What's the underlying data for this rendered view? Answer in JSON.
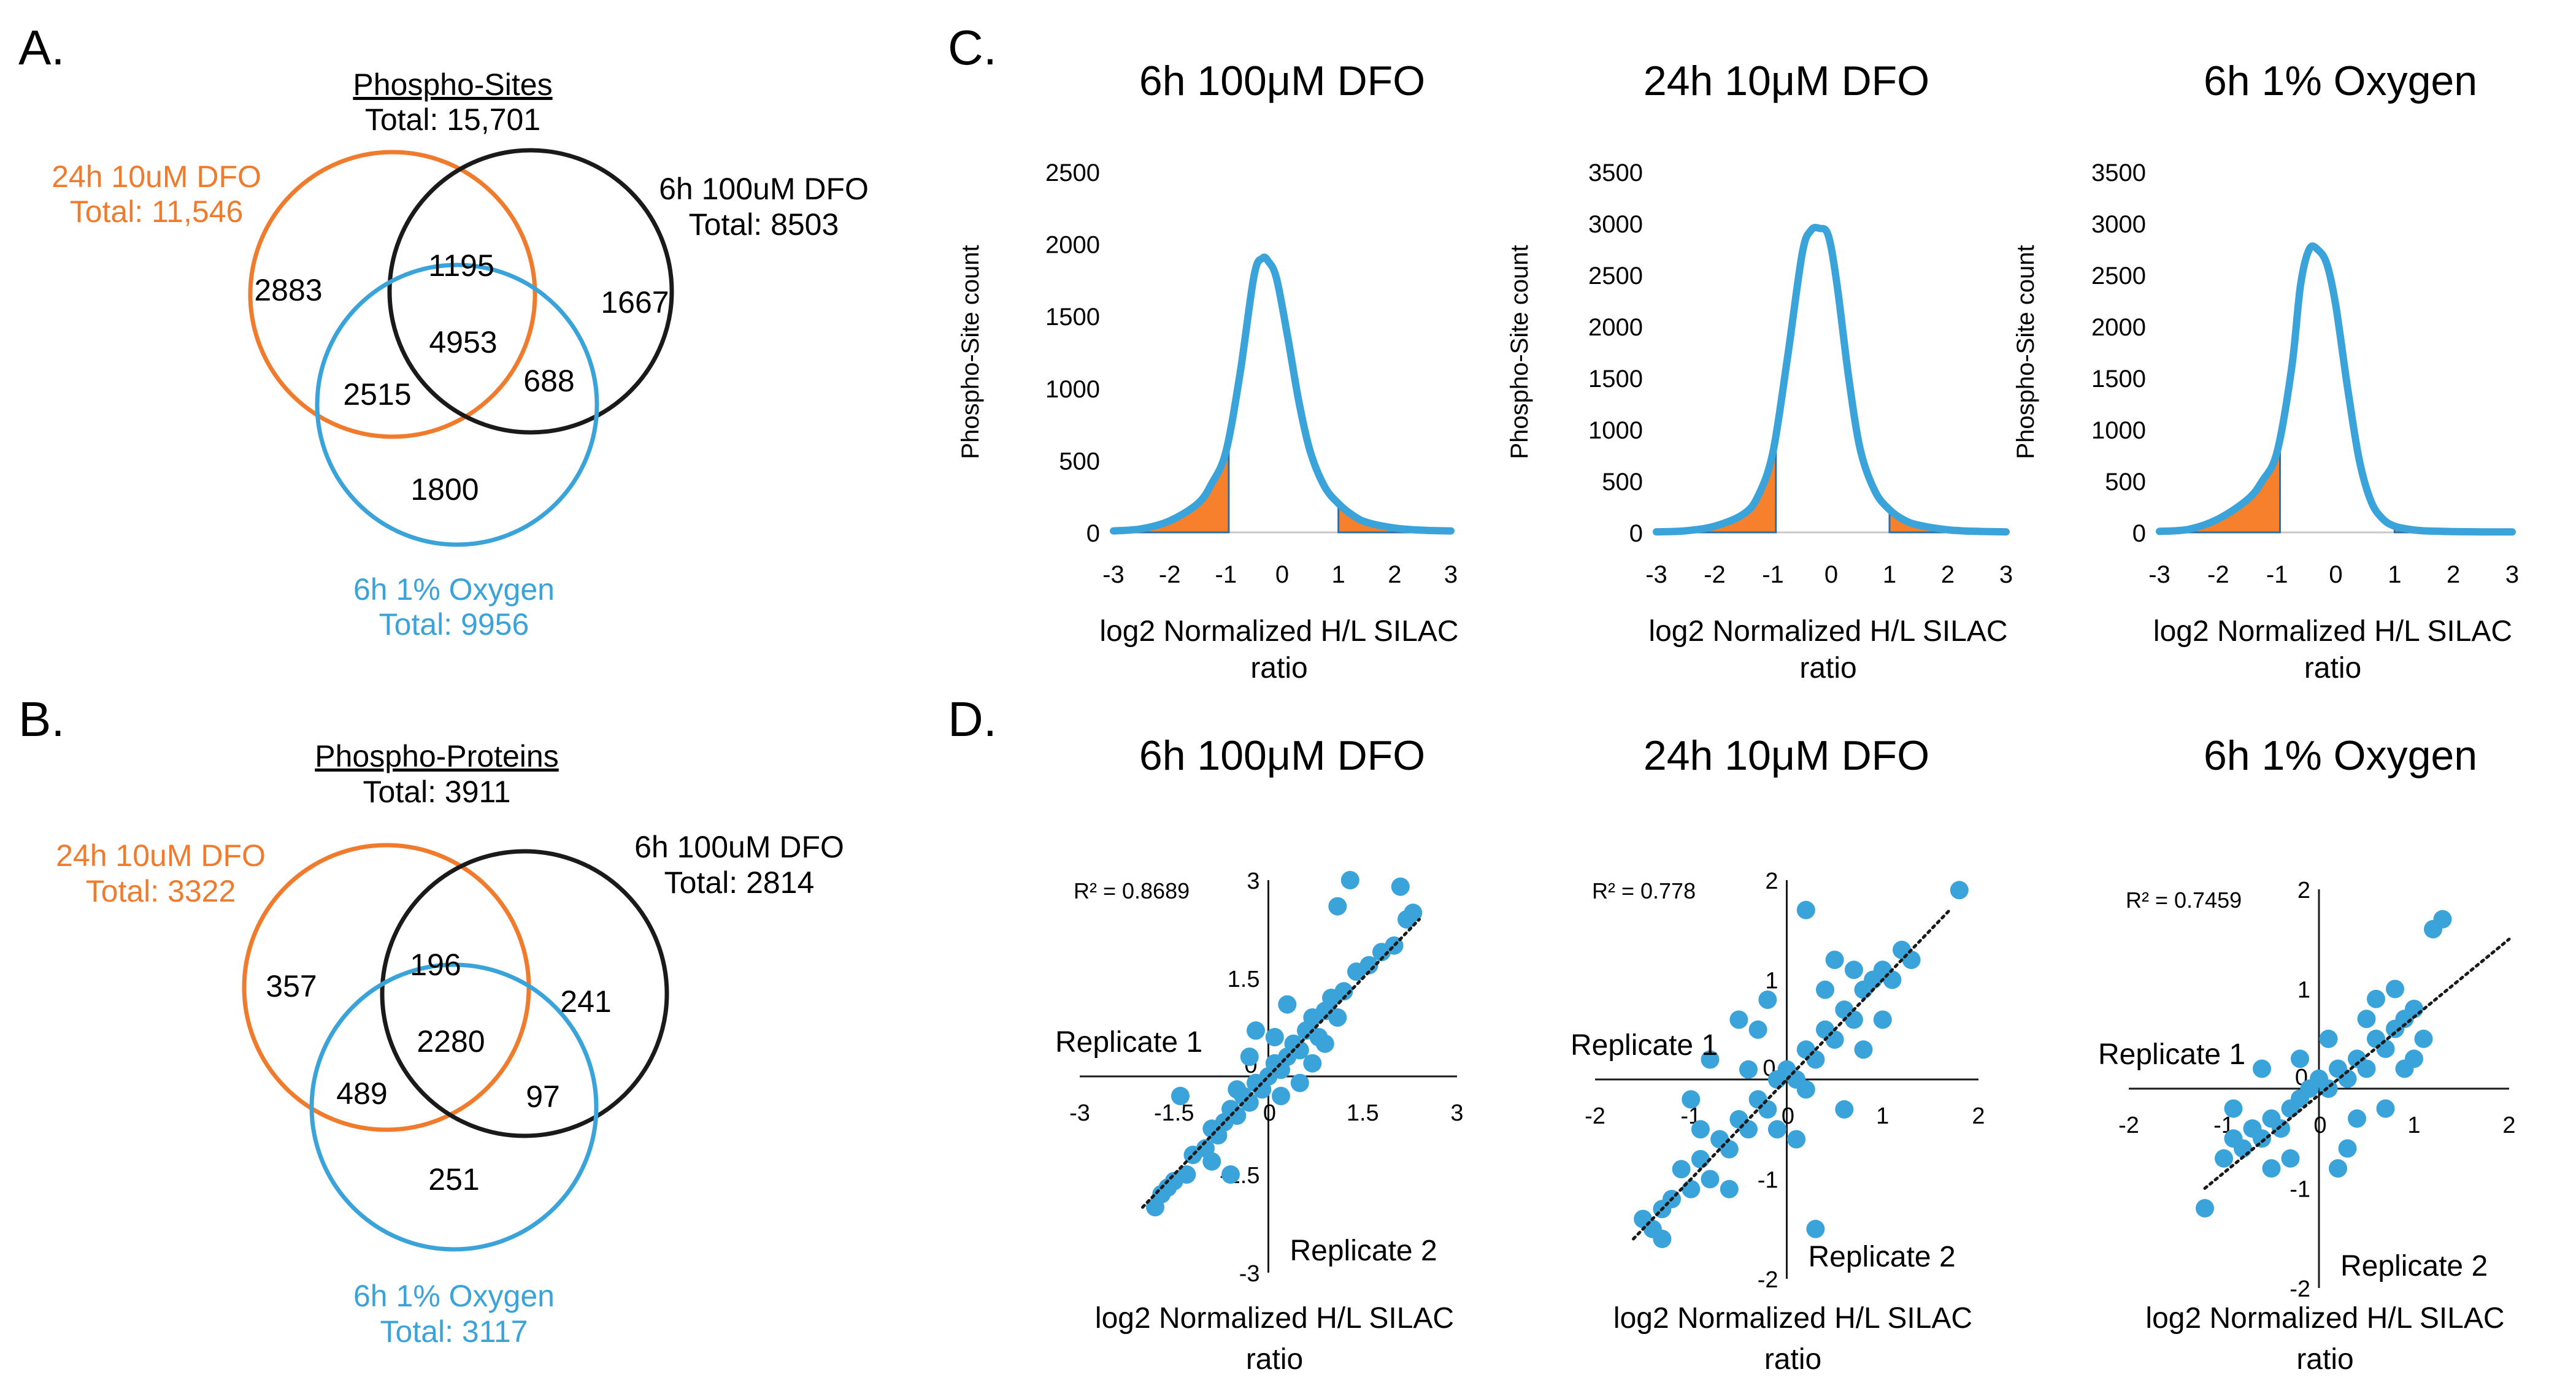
{
  "colors": {
    "orange": "#f07b2c",
    "black": "#1a1a1a",
    "blue": "#3aa3da",
    "fill_orange": "#f6802c"
  },
  "panels": {
    "A": {
      "label": "A.",
      "header": {
        "title": "Phospho-Sites",
        "total": "Total: 15,701"
      },
      "sets": {
        "orange": {
          "name": "24h 10uM DFO",
          "total": "Total: 11,546"
        },
        "black": {
          "name": "6h 100uM DFO",
          "total": "Total: 8503"
        },
        "blue": {
          "name": "6h 1% Oxygen",
          "total": "Total: 9956"
        }
      },
      "regions": {
        "orange_only": "2883",
        "black_only": "1667",
        "blue_only": "1800",
        "orange_black": "1195",
        "orange_blue": "2515",
        "black_blue": "688",
        "all": "4953"
      }
    },
    "B": {
      "label": "B.",
      "header": {
        "title": "Phospho-Proteins",
        "total": "Total: 3911"
      },
      "sets": {
        "orange": {
          "name": "24h 10uM DFO",
          "total": "Total: 3322"
        },
        "black": {
          "name": "6h 100uM DFO",
          "total": "Total: 2814"
        },
        "blue": {
          "name": "6h 1% Oxygen",
          "total": "Total: 3117"
        }
      },
      "regions": {
        "orange_only": "357",
        "black_only": "241",
        "blue_only": "251",
        "orange_black": "196",
        "orange_blue": "489",
        "black_blue": "97",
        "all": "2280"
      }
    },
    "C": {
      "label": "C."
    },
    "D": {
      "label": "D."
    }
  },
  "chart_data": [
    {
      "panel": "C",
      "type": "area",
      "title": "6h 100μM DFO",
      "xlabel": [
        "log2 Normalized H/L SILAC",
        "ratio"
      ],
      "ylabel": "Phospho-Site count",
      "xlim": [
        -3,
        3
      ],
      "ylim": [
        0,
        2500
      ],
      "xticks": [
        "-3",
        "-2",
        "-1",
        "0",
        "1",
        "2",
        "3"
      ],
      "yticks": [
        "0",
        "500",
        "1000",
        "1500",
        "2000",
        "2500"
      ],
      "x": [
        -3.0,
        -2.5,
        -2.0,
        -1.5,
        -1.25,
        -1.0,
        -0.75,
        -0.5,
        -0.35,
        -0.25,
        -0.1,
        0.1,
        0.3,
        0.5,
        0.75,
        1.0,
        1.25,
        1.5,
        2.0,
        2.5,
        3.0
      ],
      "y": [
        10,
        25,
        80,
        200,
        340,
        560,
        1100,
        1780,
        1900,
        1880,
        1760,
        1350,
        900,
        560,
        320,
        200,
        120,
        70,
        30,
        15,
        10
      ],
      "shaded": [
        [
          -3.0,
          -0.95
        ],
        [
          1.0,
          3.0
        ]
      ]
    },
    {
      "panel": "C",
      "type": "area",
      "title": "24h 10μM DFO",
      "xlabel": [
        "log2 Normalized H/L SILAC",
        "ratio"
      ],
      "ylabel": "Phospho-Site count",
      "xlim": [
        -3,
        3
      ],
      "ylim": [
        0,
        3500
      ],
      "xticks": [
        "-3",
        "-2",
        "-1",
        "0",
        "1",
        "2",
        "3"
      ],
      "yticks": [
        "0",
        "500",
        "1000",
        "1500",
        "2000",
        "2500",
        "3000",
        "3500"
      ],
      "x": [
        -3.0,
        -2.5,
        -2.0,
        -1.5,
        -1.25,
        -1.0,
        -0.75,
        -0.5,
        -0.35,
        -0.2,
        -0.05,
        0.1,
        0.3,
        0.5,
        0.75,
        1.0,
        1.25,
        1.5,
        2.0,
        2.5,
        3.0
      ],
      "y": [
        5,
        15,
        60,
        180,
        360,
        780,
        1700,
        2700,
        2930,
        2950,
        2880,
        2400,
        1500,
        800,
        400,
        220,
        120,
        70,
        25,
        10,
        5
      ],
      "shaded": [
        [
          -3.0,
          -0.95
        ],
        [
          1.0,
          3.0
        ]
      ]
    },
    {
      "panel": "C",
      "type": "area",
      "title": "6h 1% Oxygen",
      "xlabel": [
        "log2 Normalized H/L SILAC",
        "ratio"
      ],
      "ylabel": "Phospho-Site count",
      "xlim": [
        -3,
        3
      ],
      "ylim": [
        0,
        3500
      ],
      "xticks": [
        "-3",
        "-2",
        "-1",
        "0",
        "1",
        "2",
        "3"
      ],
      "yticks": [
        "0",
        "500",
        "1000",
        "1500",
        "2000",
        "2500",
        "3000",
        "3500"
      ],
      "x": [
        -3.0,
        -2.5,
        -2.0,
        -1.5,
        -1.25,
        -1.0,
        -0.75,
        -0.6,
        -0.45,
        -0.3,
        -0.15,
        0.0,
        0.2,
        0.4,
        0.6,
        0.8,
        1.0,
        1.25,
        1.5,
        2.0,
        2.5,
        3.0
      ],
      "y": [
        10,
        30,
        130,
        320,
        500,
        780,
        1600,
        2400,
        2750,
        2740,
        2600,
        2200,
        1400,
        700,
        300,
        130,
        60,
        30,
        15,
        8,
        5,
        5
      ],
      "shaded": [
        [
          -3.0,
          -0.95
        ],
        [
          1.0,
          3.0
        ]
      ]
    },
    {
      "panel": "D",
      "type": "scatter",
      "title": "6h 100μM DFO",
      "xlabel": [
        "log2 Normalized H/L SILAC",
        "ratio"
      ],
      "axis_x_name": "Replicate 2",
      "axis_y_name": "Replicate 1",
      "r2": "R² = 0.8689",
      "xlim": [
        -3,
        3
      ],
      "ylim": [
        -3,
        3
      ],
      "xticks": [
        "-3",
        "-1.5",
        "0",
        "1.5",
        "3"
      ],
      "xtick_values": [
        -3,
        -1.5,
        0,
        1.5,
        3
      ],
      "yticks": [
        "-3",
        "-1.5",
        "0",
        "1.5",
        "3"
      ],
      "ytick_values": [
        -3,
        -1.5,
        0,
        1.5,
        3
      ],
      "trend": [
        [
          -2.0,
          -2.0
        ],
        [
          2.4,
          2.4
        ]
      ],
      "points": [
        [
          -1.8,
          -2.0
        ],
        [
          -1.6,
          -1.7
        ],
        [
          -1.5,
          -1.6
        ],
        [
          -1.7,
          -1.8
        ],
        [
          -1.2,
          -1.2
        ],
        [
          -1.3,
          -1.5
        ],
        [
          -1.0,
          -1.1
        ],
        [
          -0.9,
          -0.8
        ],
        [
          -0.8,
          -0.9
        ],
        [
          -0.7,
          -0.7
        ],
        [
          -0.6,
          -0.5
        ],
        [
          -0.5,
          -0.6
        ],
        [
          -0.4,
          -0.3
        ],
        [
          -0.3,
          -0.4
        ],
        [
          -0.2,
          -0.1
        ],
        [
          -0.1,
          -0.2
        ],
        [
          0.0,
          0.0
        ],
        [
          0.1,
          0.2
        ],
        [
          0.2,
          0.1
        ],
        [
          0.3,
          0.3
        ],
        [
          0.4,
          0.5
        ],
        [
          0.5,
          0.4
        ],
        [
          0.6,
          0.7
        ],
        [
          0.7,
          0.9
        ],
        [
          0.8,
          0.6
        ],
        [
          0.9,
          1.0
        ],
        [
          1.0,
          1.2
        ],
        [
          1.1,
          0.9
        ],
        [
          1.2,
          1.3
        ],
        [
          1.4,
          1.6
        ],
        [
          1.6,
          1.7
        ],
        [
          1.8,
          1.9
        ],
        [
          2.0,
          2.0
        ],
        [
          2.2,
          2.4
        ],
        [
          2.3,
          2.5
        ],
        [
          1.3,
          3.0
        ],
        [
          2.1,
          2.9
        ],
        [
          1.1,
          2.6
        ],
        [
          -1.4,
          -0.3
        ],
        [
          -0.6,
          -1.5
        ],
        [
          0.3,
          1.1
        ],
        [
          -0.2,
          0.7
        ],
        [
          0.5,
          -0.1
        ],
        [
          -0.9,
          -1.3
        ],
        [
          0.7,
          0.2
        ],
        [
          -0.3,
          0.3
        ],
        [
          0.2,
          -0.3
        ],
        [
          -0.5,
          -0.2
        ],
        [
          0.1,
          0.6
        ],
        [
          0.9,
          0.5
        ]
      ]
    },
    {
      "panel": "D",
      "type": "scatter",
      "title": "24h 10μM DFO",
      "xlabel": [
        "log2 Normalized H/L SILAC",
        "ratio"
      ],
      "axis_x_name": "Replicate 2",
      "axis_y_name": "Replicate 1",
      "r2": "R² = 0.778",
      "xlim": [
        -2,
        2
      ],
      "ylim": [
        -2,
        2
      ],
      "xticks": [
        "-2",
        "-1",
        "0",
        "1",
        "2"
      ],
      "xtick_values": [
        -2,
        -1,
        0,
        1,
        2
      ],
      "yticks": [
        "-2",
        "-1",
        "0",
        "1",
        "2"
      ],
      "ytick_values": [
        -2,
        -1,
        0,
        1,
        2
      ],
      "trend": [
        [
          -1.6,
          -1.6
        ],
        [
          1.7,
          1.7
        ]
      ],
      "points": [
        [
          -1.5,
          -1.4
        ],
        [
          -1.4,
          -1.5
        ],
        [
          -1.3,
          -1.3
        ],
        [
          -1.2,
          -1.2
        ],
        [
          -1.3,
          -1.6
        ],
        [
          -1.1,
          -0.9
        ],
        [
          -1.0,
          -1.1
        ],
        [
          -0.9,
          -0.8
        ],
        [
          -0.8,
          -1.0
        ],
        [
          -0.7,
          -0.6
        ],
        [
          -0.6,
          -0.7
        ],
        [
          -0.5,
          -0.4
        ],
        [
          -0.4,
          -0.5
        ],
        [
          -0.3,
          -0.2
        ],
        [
          -0.2,
          -0.3
        ],
        [
          -0.1,
          0.0
        ],
        [
          0.0,
          0.1
        ],
        [
          0.1,
          0.0
        ],
        [
          0.2,
          0.3
        ],
        [
          0.3,
          0.2
        ],
        [
          0.4,
          0.5
        ],
        [
          0.5,
          0.4
        ],
        [
          0.6,
          0.7
        ],
        [
          0.7,
          0.6
        ],
        [
          0.8,
          0.9
        ],
        [
          0.9,
          1.0
        ],
        [
          1.0,
          1.1
        ],
        [
          1.1,
          1.0
        ],
        [
          1.2,
          1.3
        ],
        [
          1.3,
          1.2
        ],
        [
          1.8,
          1.9
        ],
        [
          0.2,
          1.7
        ],
        [
          0.3,
          -1.5
        ],
        [
          -0.8,
          0.2
        ],
        [
          -0.5,
          0.6
        ],
        [
          0.6,
          -0.3
        ],
        [
          -1.0,
          -0.2
        ],
        [
          0.4,
          0.9
        ],
        [
          -0.3,
          0.5
        ],
        [
          0.8,
          0.3
        ],
        [
          -0.6,
          -1.1
        ],
        [
          0.1,
          -0.6
        ],
        [
          1.0,
          0.6
        ],
        [
          -0.2,
          0.8
        ],
        [
          0.5,
          1.2
        ],
        [
          -0.9,
          -0.5
        ],
        [
          -0.4,
          0.1
        ],
        [
          0.2,
          -0.1
        ],
        [
          0.7,
          1.1
        ],
        [
          -0.1,
          -0.5
        ]
      ]
    },
    {
      "panel": "D",
      "type": "scatter",
      "title": "6h 1% Oxygen",
      "xlabel": [
        "log2 Normalized H/L SILAC",
        "ratio"
      ],
      "axis_x_name": "Replicate 2",
      "axis_y_name": "Replicate 1",
      "r2": "R² = 0.7459",
      "xlim": [
        -2,
        2
      ],
      "ylim": [
        -2,
        2
      ],
      "xticks": [
        "-2",
        "-1",
        "0",
        "1",
        "2"
      ],
      "xtick_values": [
        -2,
        -1,
        0,
        1,
        2
      ],
      "yticks": [
        "-2",
        "-1",
        "0",
        "1",
        "2"
      ],
      "ytick_values": [
        -2,
        -1,
        0,
        1,
        2
      ],
      "trend": [
        [
          -1.2,
          -1.0
        ],
        [
          2.0,
          1.5
        ]
      ],
      "points": [
        [
          -1.2,
          -1.2
        ],
        [
          -1.0,
          -0.7
        ],
        [
          -0.9,
          -0.5
        ],
        [
          -0.8,
          -0.6
        ],
        [
          -0.7,
          -0.4
        ],
        [
          -0.6,
          -0.5
        ],
        [
          -0.5,
          -0.3
        ],
        [
          -0.4,
          -0.4
        ],
        [
          -0.3,
          -0.2
        ],
        [
          -0.2,
          -0.1
        ],
        [
          -0.1,
          0.0
        ],
        [
          0.0,
          0.1
        ],
        [
          0.1,
          0.0
        ],
        [
          0.2,
          0.2
        ],
        [
          0.3,
          0.1
        ],
        [
          0.4,
          0.3
        ],
        [
          0.5,
          0.2
        ],
        [
          0.6,
          0.5
        ],
        [
          0.7,
          0.4
        ],
        [
          0.8,
          0.6
        ],
        [
          0.9,
          0.7
        ],
        [
          1.0,
          0.8
        ],
        [
          1.1,
          0.5
        ],
        [
          1.2,
          1.6
        ],
        [
          1.3,
          1.7
        ],
        [
          0.2,
          -0.8
        ],
        [
          0.3,
          -0.6
        ],
        [
          -0.6,
          0.2
        ],
        [
          0.7,
          -0.2
        ],
        [
          0.8,
          1.0
        ],
        [
          -0.3,
          -0.7
        ],
        [
          0.5,
          0.7
        ],
        [
          0.9,
          0.2
        ],
        [
          -0.9,
          -0.2
        ],
        [
          0.1,
          0.5
        ],
        [
          -0.2,
          0.3
        ],
        [
          0.4,
          -0.3
        ],
        [
          0.6,
          0.9
        ],
        [
          -0.5,
          -0.8
        ],
        [
          1.0,
          0.3
        ]
      ]
    }
  ]
}
